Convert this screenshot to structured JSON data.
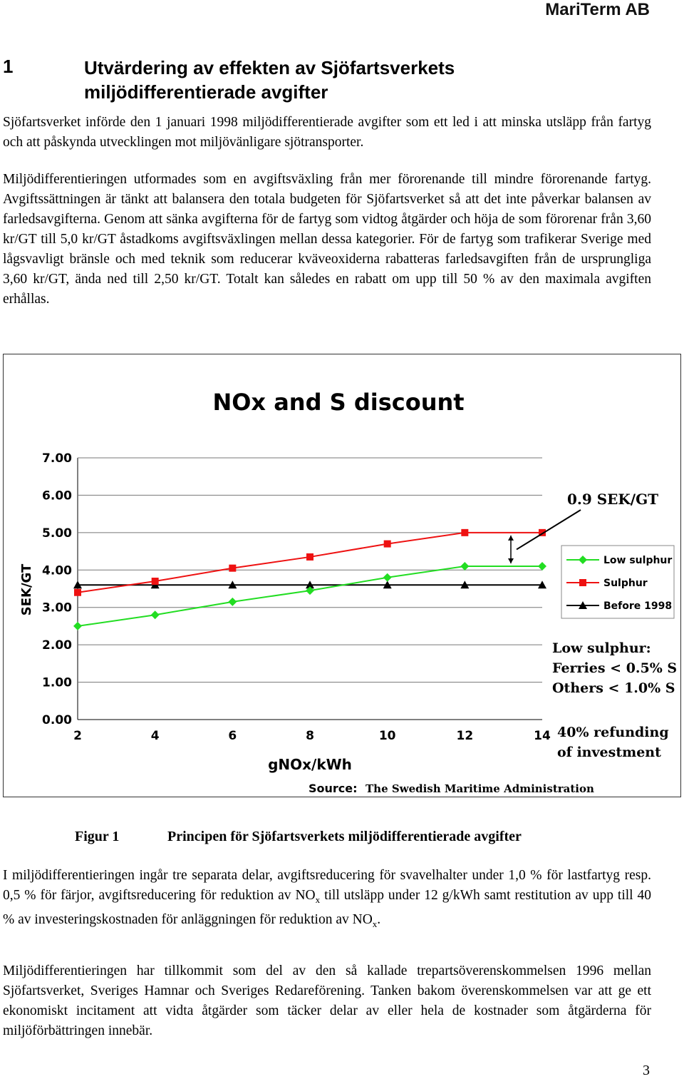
{
  "header": {
    "company": "MariTerm AB"
  },
  "section": {
    "number": "1",
    "title": "Utvärdering av effekten av Sjöfartsverkets miljödifferentierade avgifter"
  },
  "paragraphs": {
    "p1": "Sjöfartsverket införde den 1 januari 1998 miljödifferentierade avgifter som ett led i att minska utsläpp från fartyg och att påskynda utvecklingen mot miljövänligare sjötransporter.",
    "p2": "Miljödifferentieringen utformades som en avgiftsväxling från mer förorenande till mindre förorenande fartyg. Avgiftssättningen är tänkt att balansera den totala budgeten för Sjöfartsverket så att det inte påverkar balansen av farledsavgifterna. Genom att sänka avgifterna för de fartyg som vidtog åtgärder och höja de som förorenar från 3,60 kr/GT till 5,0 kr/GT åstadkoms avgiftsväxlingen mellan dessa kategorier. För de fartyg som trafikerar Sverige med lågsvavligt bränsle och med teknik som reducerar kväveoxiderna rabatteras farledsavgiften från de ursprungliga 3,60 kr/GT, ända ned till 2,50 kr/GT. Totalt kan således en rabatt om upp till 50 % av den maximala avgiften erhållas.",
    "p3a": "I miljödifferentieringen ingår tre separata delar, avgiftsreducering för svavelhalter under 1,0 % för lastfartyg resp. 0,5 % för färjor, avgiftsreducering för reduktion av NO",
    "p3_sub": "x",
    "p3b": " till utsläpp under 12 g/kWh samt restitution av upp till 40 % av investeringskostnaden för anläggningen för reduktion av NO",
    "p3_sub2": "x",
    "p3c": ".",
    "p4": "Miljödifferentieringen har tillkommit som del av den så kallade trepartsöverenskommelsen 1996 mellan Sjöfartsverket, Sveriges Hamnar och Sveriges Redareförening. Tanken bakom överenskommelsen var att ge ett ekonomiskt incitament att vidta åtgärder som täcker delar av eller hela de kostnader som åtgärderna för miljöförbättringen innebär."
  },
  "figure": {
    "label": "Figur 1",
    "caption": "Principen för Sjöfartsverkets miljödifferentierade avgifter"
  },
  "page_number": "3",
  "chart_data": {
    "type": "line",
    "title": "NOx and S discount",
    "xlabel": "gNOx/kWh",
    "ylabel": "SEK/GT",
    "x": [
      2,
      4,
      6,
      8,
      10,
      12,
      14
    ],
    "xlim": [
      2,
      14
    ],
    "ylim": [
      0,
      7
    ],
    "y_ticks": [
      "0.00",
      "1.00",
      "2.00",
      "3.00",
      "4.00",
      "5.00",
      "6.00",
      "7.00"
    ],
    "x_ticks": [
      "2",
      "4",
      "6",
      "8",
      "10",
      "12",
      "14"
    ],
    "grid": "horizontal",
    "legend_position": "right",
    "series": [
      {
        "name": "Low sulphur",
        "color": "#22dd22",
        "marker": "diamond",
        "values": [
          2.5,
          2.8,
          3.15,
          3.45,
          3.8,
          4.1,
          4.1
        ]
      },
      {
        "name": "Sulphur",
        "color": "#ee1111",
        "marker": "square",
        "values": [
          3.4,
          3.7,
          4.05,
          4.35,
          4.7,
          5.0,
          5.0
        ]
      },
      {
        "name": "Before 1998",
        "color": "#000000",
        "marker": "triangle",
        "values": [
          3.6,
          3.6,
          3.6,
          3.6,
          3.6,
          3.6,
          3.6
        ]
      }
    ],
    "annotations": {
      "gap_label": "0.9 SEK/GT",
      "low_sulphur_title": "Low sulphur:",
      "low_sulphur_ferries": "Ferries < 0.5% S",
      "low_sulphur_others": "Others < 1.0% S",
      "refund_line1": "40% refunding",
      "refund_line2": "of investment",
      "source_label": "Source:",
      "source_text": "The Swedish Maritime Administration"
    }
  }
}
